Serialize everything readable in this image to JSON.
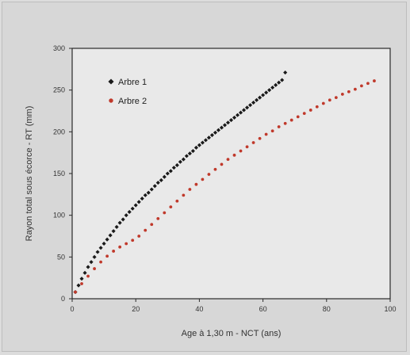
{
  "chart_data": {
    "type": "scatter",
    "xlabel": "Age à 1,30 m - NCT (ans)",
    "ylabel": "Rayon total sous écorce - RT (mm)",
    "xlim": [
      0,
      100
    ],
    "ylim": [
      0,
      300
    ],
    "xticks": [
      0,
      20,
      40,
      60,
      80,
      100
    ],
    "yticks": [
      0,
      50,
      100,
      150,
      200,
      250,
      300
    ],
    "grid": false,
    "legend_position": "top-left",
    "series": [
      {
        "name": "Arbre 1",
        "color": "#1a1a1a",
        "marker": "diamond",
        "points": [
          [
            1,
            8
          ],
          [
            2,
            16
          ],
          [
            3,
            24
          ],
          [
            4,
            31
          ],
          [
            5,
            38
          ],
          [
            6,
            44
          ],
          [
            7,
            50
          ],
          [
            8,
            56
          ],
          [
            9,
            61
          ],
          [
            10,
            66
          ],
          [
            11,
            71
          ],
          [
            12,
            76
          ],
          [
            13,
            81
          ],
          [
            14,
            86
          ],
          [
            15,
            91
          ],
          [
            16,
            95
          ],
          [
            17,
            100
          ],
          [
            18,
            104
          ],
          [
            19,
            108
          ],
          [
            20,
            112
          ],
          [
            21,
            116
          ],
          [
            22,
            120
          ],
          [
            23,
            124
          ],
          [
            24,
            127
          ],
          [
            25,
            131
          ],
          [
            26,
            135
          ],
          [
            27,
            139
          ],
          [
            28,
            142
          ],
          [
            29,
            146
          ],
          [
            30,
            150
          ],
          [
            31,
            153
          ],
          [
            32,
            157
          ],
          [
            33,
            160
          ],
          [
            34,
            164
          ],
          [
            35,
            167
          ],
          [
            36,
            171
          ],
          [
            37,
            174
          ],
          [
            38,
            177
          ],
          [
            39,
            181
          ],
          [
            40,
            184
          ],
          [
            41,
            187
          ],
          [
            42,
            190
          ],
          [
            43,
            193
          ],
          [
            44,
            196
          ],
          [
            45,
            199
          ],
          [
            46,
            202
          ],
          [
            47,
            205
          ],
          [
            48,
            208
          ],
          [
            49,
            211
          ],
          [
            50,
            214
          ],
          [
            51,
            217
          ],
          [
            52,
            220
          ],
          [
            53,
            223
          ],
          [
            54,
            226
          ],
          [
            55,
            229
          ],
          [
            56,
            232
          ],
          [
            57,
            235
          ],
          [
            58,
            238
          ],
          [
            59,
            241
          ],
          [
            60,
            244
          ],
          [
            61,
            247
          ],
          [
            62,
            250
          ],
          [
            63,
            253
          ],
          [
            64,
            256
          ],
          [
            65,
            259
          ],
          [
            66,
            262
          ],
          [
            67,
            271
          ]
        ]
      },
      {
        "name": "Arbre 2",
        "color": "#c0392b",
        "marker": "circle",
        "points": [
          [
            1,
            8
          ],
          [
            3,
            18
          ],
          [
            5,
            27
          ],
          [
            7,
            36
          ],
          [
            9,
            44
          ],
          [
            11,
            51
          ],
          [
            13,
            57
          ],
          [
            15,
            62
          ],
          [
            17,
            66
          ],
          [
            19,
            70
          ],
          [
            21,
            75
          ],
          [
            23,
            82
          ],
          [
            25,
            89
          ],
          [
            27,
            96
          ],
          [
            29,
            103
          ],
          [
            31,
            110
          ],
          [
            33,
            117
          ],
          [
            35,
            124
          ],
          [
            37,
            131
          ],
          [
            39,
            137
          ],
          [
            41,
            143
          ],
          [
            43,
            149
          ],
          [
            45,
            155
          ],
          [
            47,
            161
          ],
          [
            49,
            167
          ],
          [
            51,
            172
          ],
          [
            53,
            177
          ],
          [
            55,
            182
          ],
          [
            57,
            187
          ],
          [
            59,
            192
          ],
          [
            61,
            197
          ],
          [
            63,
            201
          ],
          [
            65,
            206
          ],
          [
            67,
            210
          ],
          [
            69,
            214
          ],
          [
            71,
            218
          ],
          [
            73,
            222
          ],
          [
            75,
            226
          ],
          [
            77,
            230
          ],
          [
            79,
            234
          ],
          [
            81,
            238
          ],
          [
            83,
            241
          ],
          [
            85,
            245
          ],
          [
            87,
            248
          ],
          [
            89,
            251
          ],
          [
            91,
            255
          ],
          [
            93,
            258
          ],
          [
            95,
            261
          ]
        ]
      }
    ]
  }
}
